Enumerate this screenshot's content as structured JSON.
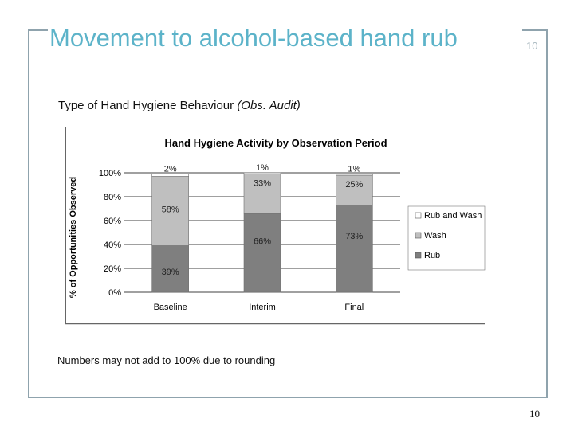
{
  "slide": {
    "title": "Movement to alcohol-based hand rub",
    "slide_number_top": "10",
    "subtitle_main": "Type of Hand Hygiene Behaviour ",
    "subtitle_italic": "(Obs. Audit)",
    "footnote": "Numbers may not add to 100% due to rounding",
    "slide_number_bottom": "10",
    "frame_color": "#8fa3ad",
    "title_color": "#5cb3c9"
  },
  "chart_data": {
    "type": "bar",
    "stacked": true,
    "title": "Hand Hygiene Activity by Observation Period",
    "ylabel": "% of Opportunities Observed",
    "xlabel": "",
    "ylim": [
      0,
      100
    ],
    "yticks": [
      "0%",
      "20%",
      "40%",
      "60%",
      "80%",
      "100%"
    ],
    "categories": [
      "Baseline",
      "Interim",
      "Final"
    ],
    "series": [
      {
        "name": "Rub",
        "values": [
          39,
          66,
          73
        ],
        "labels": [
          "39%",
          "66%",
          "73%"
        ],
        "color": "#7f7f7f"
      },
      {
        "name": "Wash",
        "values": [
          58,
          33,
          25
        ],
        "labels": [
          "58%",
          "33%",
          "25%"
        ],
        "color": "#bfbfbf"
      },
      {
        "name": "Rub and Wash",
        "values": [
          2,
          1,
          1
        ],
        "labels": [
          "2%",
          "1%",
          "1%"
        ],
        "color": "#ffffff"
      }
    ],
    "legend_order": [
      "Rub and Wash",
      "Wash",
      "Rub"
    ],
    "legend_position": "right",
    "grid": true
  }
}
